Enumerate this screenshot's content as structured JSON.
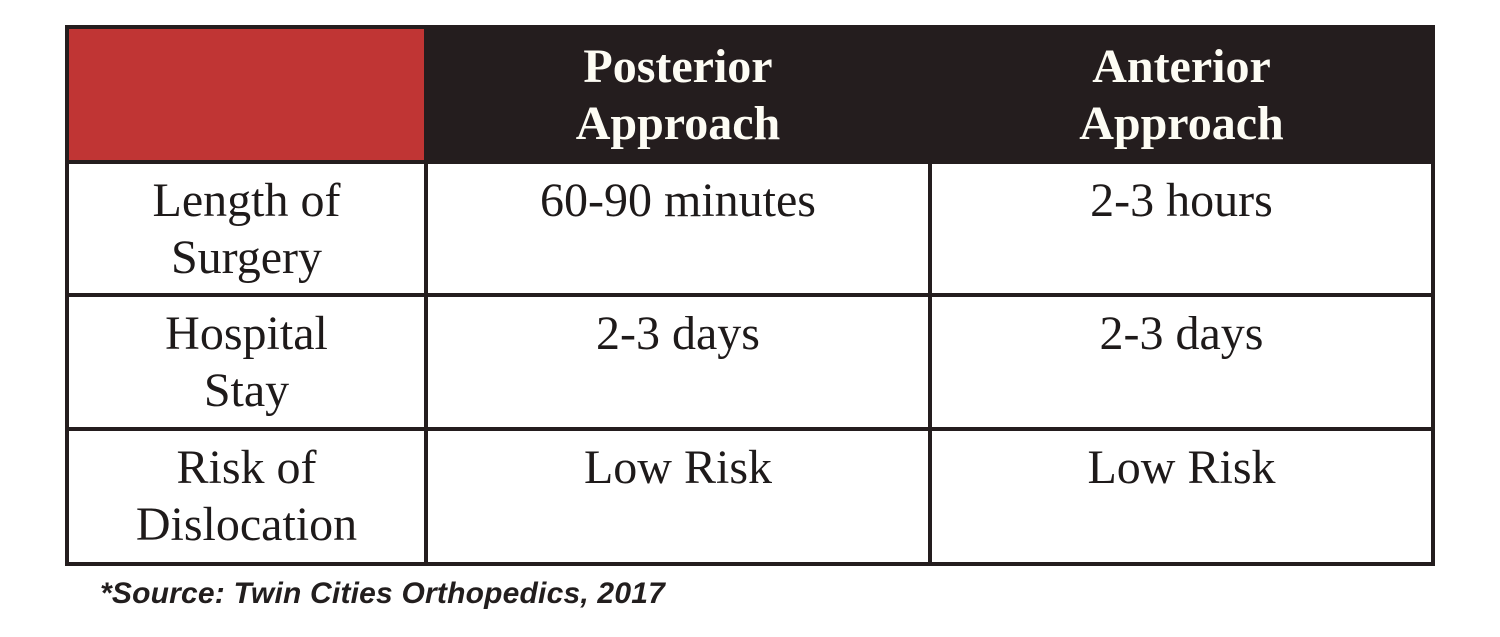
{
  "chart_data": {
    "type": "table",
    "columns": [
      "",
      "Posterior Approach",
      "Anterior Approach"
    ],
    "rows": [
      {
        "label": "Length of Surgery",
        "values": [
          "60-90 minutes",
          "2-3 hours"
        ]
      },
      {
        "label": "Hospital Stay",
        "values": [
          "2-3 days",
          "2-3 days"
        ]
      },
      {
        "label": "Risk of Dislocation",
        "values": [
          "Low Risk",
          "Low Risk"
        ]
      }
    ],
    "footnote": "*Source: Twin Cities Orthopedics, 2017"
  },
  "table": {
    "corner": "",
    "headers": [
      "Posterior\nApproach",
      "Anterior\nApproach"
    ],
    "rows": [
      {
        "label": "Length of\nSurgery",
        "cells": [
          "60-90 minutes",
          "2-3 hours"
        ]
      },
      {
        "label": "Hospital\nStay",
        "cells": [
          "2-3 days",
          "2-3 days"
        ]
      },
      {
        "label": "Risk of\nDislocation",
        "cells": [
          "Low Risk",
          "Low Risk"
        ]
      }
    ]
  },
  "footnote": "*Source: Twin Cities Orthopedics, 2017",
  "colors": {
    "accent_red": "#c03534",
    "header_black": "#241d1e",
    "border": "#241d1e",
    "body_text": "#1e1a1a",
    "header_text": "#fdfcf4",
    "background": "#ffffff"
  }
}
